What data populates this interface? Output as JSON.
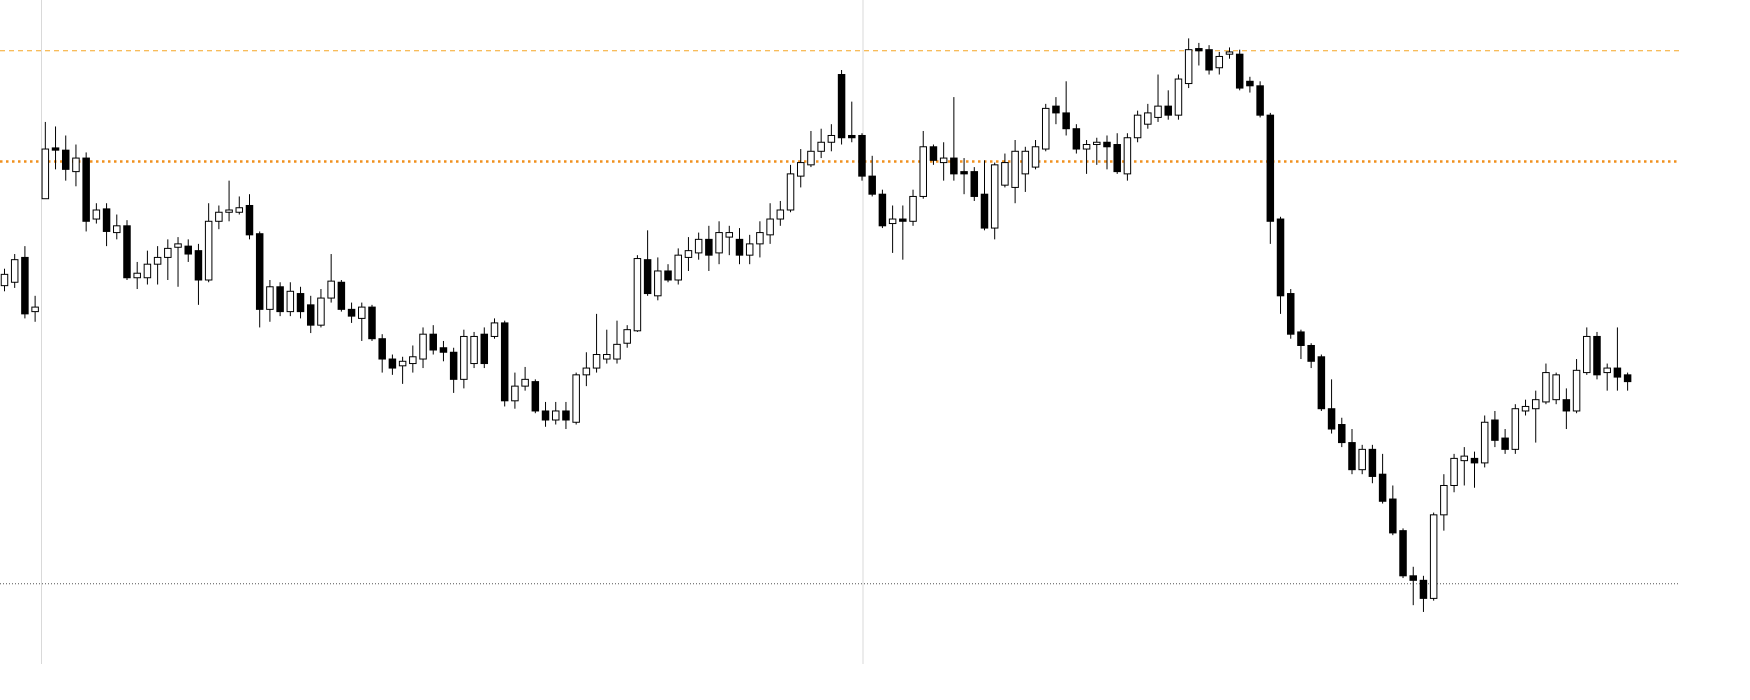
{
  "chart_data": {
    "type": "candlestick",
    "ylim": [
      0,
      620
    ],
    "up_color": "#ffffff",
    "down_color": "#000000",
    "levels": [
      {
        "value": 575,
        "color": "#f5a623",
        "style": "dashed"
      },
      {
        "value": 477,
        "color": "#f0901e",
        "style": "dotted"
      },
      {
        "value": 103,
        "color": "#555555",
        "style": "fine-dotted"
      }
    ],
    "open": [
      367,
      370,
      392,
      344,
      444,
      489,
      487,
      468,
      480,
      426,
      435,
      414,
      420,
      374,
      374,
      386,
      392,
      401,
      402,
      398,
      372,
      424,
      432,
      432,
      438,
      413,
      346,
      366,
      344,
      360,
      350,
      332,
      356,
      370,
      346,
      338,
      348,
      320,
      302,
      296,
      298,
      302,
      324,
      312,
      308,
      284,
      298,
      324,
      322,
      334,
      265,
      278,
      282,
      256,
      248,
      256,
      246,
      288,
      294,
      302,
      302,
      316,
      327,
      390,
      358,
      380,
      372,
      392,
      396,
      408,
      396,
      410,
      408,
      394,
      404,
      412,
      426,
      434,
      464,
      474,
      486,
      494,
      554,
      500,
      500,
      464,
      448,
      422,
      426,
      424,
      446,
      490,
      476,
      480,
      468,
      468,
      448,
      418,
      456,
      454,
      466,
      472,
      488,
      526,
      520,
      506,
      488,
      492,
      494,
      492,
      466,
      498,
      510,
      516,
      526,
      518,
      546,
      577,
      576,
      560,
      572,
      572,
      548,
      544,
      518,
      426,
      360,
      326,
      314,
      304,
      258,
      244,
      228,
      204,
      222,
      200,
      178,
      150,
      110,
      106,
      90,
      164,
      190,
      212,
      214,
      210,
      248,
      232,
      222,
      256,
      258,
      264,
      266,
      266,
      256,
      290,
      322,
      290,
      294,
      288
    ],
    "high": [
      382,
      395,
      402,
      358,
      512,
      508,
      500,
      492,
      485,
      440,
      440,
      430,
      425,
      388,
      398,
      402,
      408,
      410,
      408,
      404,
      440,
      438,
      460,
      446,
      448,
      415,
      372,
      370,
      370,
      366,
      358,
      364,
      395,
      372,
      352,
      352,
      350,
      324,
      306,
      304,
      314,
      330,
      332,
      318,
      312,
      328,
      326,
      330,
      338,
      336,
      290,
      295,
      284,
      264,
      264,
      264,
      290,
      308,
      342,
      328,
      336,
      332,
      394,
      416,
      392,
      386,
      400,
      410,
      414,
      420,
      424,
      420,
      418,
      412,
      424,
      440,
      442,
      474,
      488,
      504,
      506,
      510,
      558,
      530,
      502,
      482,
      452,
      438,
      438,
      452,
      504,
      492,
      494,
      534,
      480,
      472,
      478,
      476,
      484,
      496,
      490,
      496,
      528,
      534,
      548,
      510,
      496,
      498,
      500,
      502,
      502,
      522,
      528,
      554,
      540,
      554,
      586,
      582,
      580,
      574,
      578,
      576,
      552,
      548,
      520,
      428,
      364,
      328,
      316,
      306,
      284,
      250,
      240,
      226,
      226,
      218,
      190,
      152,
      118,
      110,
      166,
      200,
      218,
      224,
      220,
      252,
      256,
      240,
      262,
      266,
      274,
      298,
      290,
      276,
      302,
      330,
      326,
      298,
      330,
      290
    ],
    "low": [
      362,
      365,
      338,
      335,
      444,
      470,
      460,
      455,
      415,
      422,
      402,
      408,
      372,
      364,
      368,
      368,
      372,
      366,
      388,
      350,
      370,
      417,
      424,
      430,
      408,
      330,
      335,
      340,
      340,
      338,
      325,
      330,
      352,
      344,
      334,
      318,
      318,
      290,
      288,
      280,
      290,
      294,
      306,
      300,
      272,
      276,
      294,
      294,
      320,
      260,
      258,
      274,
      254,
      242,
      244,
      240,
      244,
      278,
      290,
      298,
      298,
      312,
      326,
      358,
      354,
      370,
      368,
      380,
      390,
      380,
      386,
      394,
      386,
      386,
      392,
      404,
      420,
      432,
      454,
      472,
      480,
      486,
      492,
      494,
      460,
      446,
      418,
      396,
      390,
      420,
      444,
      474,
      460,
      460,
      448,
      442,
      416,
      408,
      454,
      440,
      450,
      470,
      486,
      510,
      500,
      484,
      466,
      474,
      470,
      466,
      460,
      494,
      506,
      512,
      514,
      514,
      542,
      562,
      554,
      554,
      568,
      540,
      538,
      516,
      404,
      342,
      320,
      302,
      294,
      256,
      236,
      224,
      200,
      200,
      192,
      174,
      146,
      108,
      84,
      78,
      88,
      150,
      184,
      190,
      188,
      206,
      224,
      218,
      218,
      252,
      228,
      262,
      262,
      240,
      254,
      288,
      284,
      274,
      274,
      274
    ],
    "close": [
      377,
      390,
      342,
      348,
      488,
      487,
      470,
      480,
      424,
      434,
      415,
      420,
      374,
      378,
      386,
      392,
      400,
      404,
      395,
      372,
      424,
      432,
      434,
      436,
      412,
      346,
      366,
      344,
      362,
      344,
      332,
      356,
      371,
      346,
      340,
      348,
      320,
      302,
      294,
      300,
      304,
      324,
      310,
      308,
      284,
      322,
      322,
      298,
      334,
      265,
      278,
      284,
      256,
      248,
      256,
      248,
      288,
      294,
      306,
      306,
      315,
      328,
      391,
      360,
      380,
      372,
      394,
      398,
      408,
      394,
      414,
      414,
      394,
      404,
      414,
      426,
      434,
      466,
      476,
      486,
      494,
      500,
      498,
      498,
      464,
      448,
      420,
      426,
      424,
      446,
      490,
      478,
      480,
      466,
      466,
      446,
      418,
      474,
      476,
      486,
      486,
      490,
      524,
      520,
      506,
      488,
      492,
      494,
      490,
      468,
      498,
      518,
      520,
      526,
      518,
      550,
      576,
      575,
      558,
      570,
      574,
      542,
      544,
      518,
      424,
      358,
      324,
      314,
      300,
      258,
      240,
      228,
      204,
      222,
      198,
      176,
      148,
      110,
      106,
      90,
      164,
      190,
      214,
      216,
      210,
      246,
      230,
      222,
      258,
      260,
      266,
      290,
      288,
      256,
      292,
      322,
      288,
      294,
      286,
      282
    ]
  }
}
